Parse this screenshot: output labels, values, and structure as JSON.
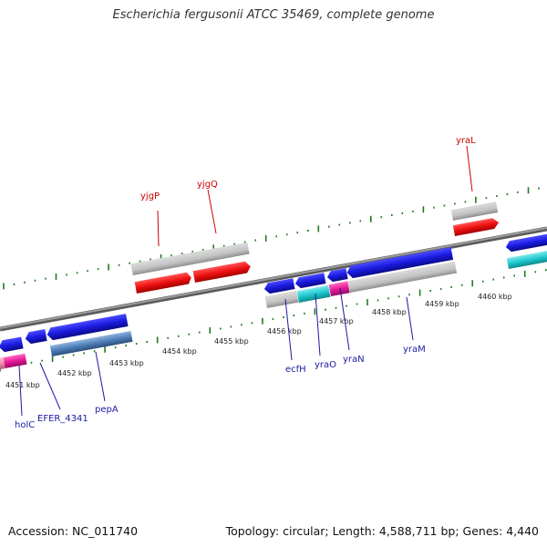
{
  "title": "Escherichia fergusonii ATCC 35469, complete genome",
  "accession": "Accession: NC_011740",
  "summary": "Topology: circular; Length: 4,588,711 bp; Genes: 4,440",
  "colors": {
    "backbone": "#8a8a8a",
    "tick": "#1f7a1f",
    "forward_gene": "#ee1111",
    "reverse_gene": "#1b1be0",
    "bar_gray": "#c4c4c4",
    "bar_cyan": "#1fc9cf",
    "bar_magenta": "#e6199a",
    "bar_steelblue": "#4f7fb8",
    "bar_pink": "#f08aa8",
    "label_forward": "#cc0000",
    "label_reverse": "#1a1aa6"
  },
  "scale_labels": [
    "4451 kbp",
    "4452 kbp",
    "4453 kbp",
    "4454 kbp",
    "4455 kbp",
    "4456 kbp",
    "4457 kbp",
    "4458 kbp",
    "4459 kbp",
    "4460 kbp"
  ],
  "forward_genes": [
    "yjgP",
    "yjgQ",
    "yraL"
  ],
  "reverse_genes": [
    "holC",
    "EFER_4341",
    "pepA",
    "ecfH",
    "yraO",
    "yraN",
    "yraM"
  ]
}
